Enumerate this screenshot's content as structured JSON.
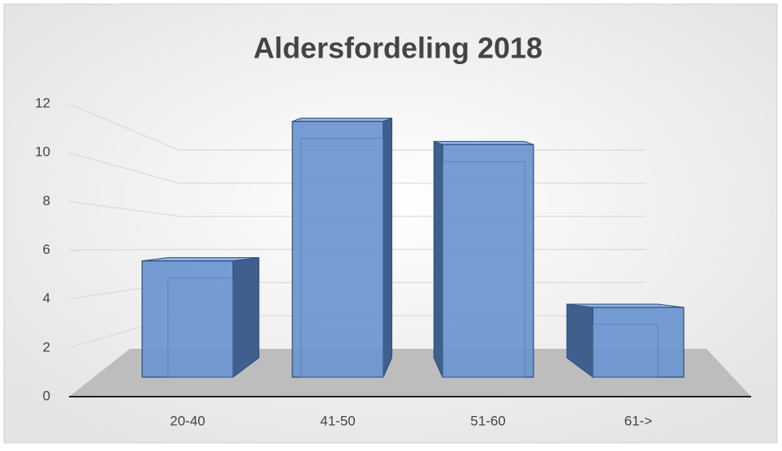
{
  "chart_data": {
    "type": "bar3d",
    "title": "Aldersfordeling 2018",
    "categories": [
      "20-40",
      "41-50",
      "51-60",
      "61->"
    ],
    "values": [
      5,
      11,
      10,
      3
    ],
    "color": "#6b95d0",
    "ylim": [
      0,
      12
    ],
    "yticks": [
      0,
      2,
      4,
      6,
      8,
      10,
      12
    ],
    "grid": true
  }
}
